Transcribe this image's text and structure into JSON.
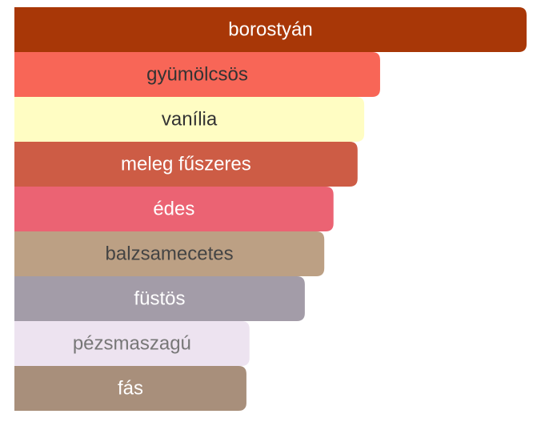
{
  "chart_data": {
    "type": "bar",
    "orientation": "horizontal",
    "categories": [
      "borostyán",
      "gyümölcsös",
      "vanília",
      "meleg fűszeres",
      "édes",
      "balzsamecetes",
      "füstös",
      "pézsmaszagú",
      "fás"
    ],
    "values": [
      100,
      71.4,
      68.3,
      67,
      62.3,
      60.5,
      56.7,
      45.9,
      45.3
    ],
    "colors": [
      "#a83707",
      "#f86657",
      "#fffdc3",
      "#cd5c45",
      "#eb6373",
      "#bca084",
      "#a39ca8",
      "#ede3f0",
      "#a88f7b"
    ],
    "label_colors": [
      "#ffffff",
      "#333333",
      "#333333",
      "#ffffff",
      "#ffffff",
      "#444444",
      "#ffffff",
      "#777777",
      "#ffffff"
    ],
    "xlim": [
      0,
      100
    ]
  }
}
